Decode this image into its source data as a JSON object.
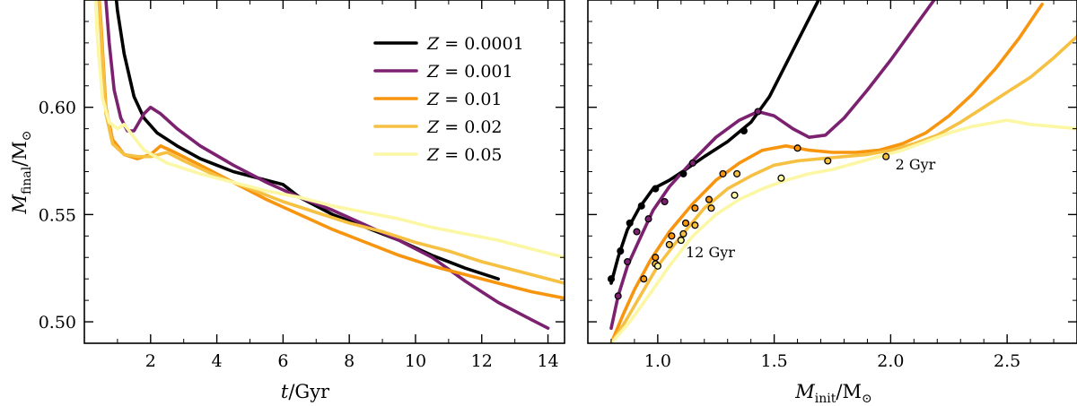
{
  "chart_data": [
    {
      "type": "line",
      "panel": "left",
      "xlabel": {
        "var": "t",
        "unit": "Gyr"
      },
      "ylabel": {
        "var": "M",
        "sub": "final",
        "unit": "M",
        "unit_sym": "⊙"
      },
      "xlim": [
        0,
        14.5
      ],
      "ylim": [
        0.49,
        0.65
      ],
      "xticks": [
        2,
        4,
        6,
        8,
        10,
        12,
        14
      ],
      "yticks": [
        0.5,
        0.55,
        0.6
      ],
      "ytick_labels": [
        "0.50",
        "0.55",
        "0.60"
      ],
      "legend": {
        "position": "top-right",
        "entries": [
          {
            "var": "Z",
            "text": " = 0.0001",
            "color": "#000000"
          },
          {
            "var": "Z",
            "text": " = 0.001",
            "color": "#7b2170"
          },
          {
            "var": "Z",
            "text": " = 0.01",
            "color": "#f8950f"
          },
          {
            "var": "Z",
            "text": " = 0.02",
            "color": "#f6c143"
          },
          {
            "var": "Z",
            "text": " = 0.05",
            "color": "#fbf7a4"
          }
        ]
      },
      "series": [
        {
          "name": "Z = 0.0001",
          "color": "#000000",
          "points": [
            [
              0.9,
              0.66
            ],
            [
              1.0,
              0.645
            ],
            [
              1.2,
              0.625
            ],
            [
              1.5,
              0.605
            ],
            [
              1.8,
              0.595
            ],
            [
              2.2,
              0.588
            ],
            [
              2.8,
              0.582
            ],
            [
              3.5,
              0.576
            ],
            [
              4.5,
              0.57
            ],
            [
              5.5,
              0.566
            ],
            [
              6.0,
              0.564
            ],
            [
              6.5,
              0.558
            ],
            [
              7.5,
              0.55
            ],
            [
              8.5,
              0.544
            ],
            [
              9.5,
              0.538
            ],
            [
              10.5,
              0.531
            ],
            [
              11.5,
              0.525
            ],
            [
              12.5,
              0.52
            ]
          ]
        },
        {
          "name": "Z = 0.001",
          "color": "#7b2170",
          "points": [
            [
              0.6,
              0.66
            ],
            [
              0.75,
              0.63
            ],
            [
              0.9,
              0.608
            ],
            [
              1.1,
              0.595
            ],
            [
              1.3,
              0.589
            ],
            [
              1.5,
              0.589
            ],
            [
              1.8,
              0.597
            ],
            [
              2.0,
              0.6
            ],
            [
              2.3,
              0.597
            ],
            [
              2.8,
              0.59
            ],
            [
              3.5,
              0.582
            ],
            [
              4.5,
              0.573
            ],
            [
              5.5,
              0.565
            ],
            [
              6.5,
              0.558
            ],
            [
              7.5,
              0.552
            ],
            [
              8.5,
              0.545
            ],
            [
              9.5,
              0.538
            ],
            [
              10.5,
              0.53
            ],
            [
              11.5,
              0.519
            ],
            [
              12.5,
              0.509
            ],
            [
              13.5,
              0.501
            ],
            [
              14.0,
              0.497
            ]
          ]
        },
        {
          "name": "Z = 0.01",
          "color": "#f8950f",
          "points": [
            [
              0.4,
              0.66
            ],
            [
              0.5,
              0.64
            ],
            [
              0.65,
              0.6
            ],
            [
              0.85,
              0.585
            ],
            [
              1.2,
              0.578
            ],
            [
              1.6,
              0.576
            ],
            [
              2.0,
              0.578
            ],
            [
              2.3,
              0.582
            ],
            [
              2.6,
              0.58
            ],
            [
              3.5,
              0.573
            ],
            [
              4.5,
              0.565
            ],
            [
              5.5,
              0.557
            ],
            [
              6.5,
              0.55
            ],
            [
              7.5,
              0.543
            ],
            [
              8.5,
              0.537
            ],
            [
              9.5,
              0.531
            ],
            [
              10.5,
              0.526
            ],
            [
              11.5,
              0.522
            ],
            [
              12.5,
              0.518
            ],
            [
              13.5,
              0.514
            ],
            [
              14.5,
              0.511
            ]
          ]
        },
        {
          "name": "Z = 0.02",
          "color": "#f6c143",
          "points": [
            [
              0.4,
              0.66
            ],
            [
              0.5,
              0.635
            ],
            [
              0.65,
              0.597
            ],
            [
              0.85,
              0.583
            ],
            [
              1.2,
              0.578
            ],
            [
              1.6,
              0.577
            ],
            [
              2.0,
              0.577
            ],
            [
              2.5,
              0.579
            ],
            [
              3.0,
              0.575
            ],
            [
              4.0,
              0.568
            ],
            [
              5.0,
              0.562
            ],
            [
              6.0,
              0.556
            ],
            [
              7.0,
              0.551
            ],
            [
              8.0,
              0.546
            ],
            [
              9.0,
              0.542
            ],
            [
              10.0,
              0.537
            ],
            [
              11.0,
              0.533
            ],
            [
              12.0,
              0.528
            ],
            [
              13.0,
              0.524
            ],
            [
              14.5,
              0.518
            ]
          ]
        },
        {
          "name": "Z = 0.05",
          "color": "#fbf7a4",
          "points": [
            [
              0.3,
              0.66
            ],
            [
              0.4,
              0.63
            ],
            [
              0.55,
              0.604
            ],
            [
              0.75,
              0.593
            ],
            [
              1.0,
              0.59
            ],
            [
              1.2,
              0.592
            ],
            [
              1.4,
              0.588
            ],
            [
              1.8,
              0.58
            ],
            [
              2.5,
              0.574
            ],
            [
              3.5,
              0.569
            ],
            [
              4.5,
              0.565
            ],
            [
              5.5,
              0.561
            ],
            [
              6.5,
              0.558
            ],
            [
              7.5,
              0.554
            ],
            [
              8.5,
              0.551
            ],
            [
              9.5,
              0.548
            ],
            [
              10.5,
              0.544
            ],
            [
              11.5,
              0.541
            ],
            [
              12.5,
              0.538
            ],
            [
              13.5,
              0.534
            ],
            [
              14.5,
              0.53
            ]
          ]
        }
      ]
    },
    {
      "type": "line",
      "panel": "right",
      "xlabel": {
        "var": "M",
        "sub": "init",
        "unit": "M",
        "unit_sym": "⊙"
      },
      "xlim": [
        0.7,
        2.8
      ],
      "ylim": [
        0.49,
        0.65
      ],
      "xticks": [
        1.0,
        1.5,
        2.0,
        2.5
      ],
      "xtick_labels": [
        "1.0",
        "1.5",
        "2.0",
        "2.5"
      ],
      "yticks": [
        0.5,
        0.55,
        0.6
      ],
      "series": [
        {
          "name": "Z = 0.0001",
          "color": "#000000",
          "points": [
            [
              0.8,
              0.518
            ],
            [
              0.83,
              0.53
            ],
            [
              0.87,
              0.543
            ],
            [
              0.92,
              0.553
            ],
            [
              0.98,
              0.562
            ],
            [
              1.05,
              0.566
            ],
            [
              1.12,
              0.571
            ],
            [
              1.2,
              0.577
            ],
            [
              1.3,
              0.584
            ],
            [
              1.4,
              0.593
            ],
            [
              1.48,
              0.605
            ],
            [
              1.55,
              0.62
            ],
            [
              1.62,
              0.635
            ],
            [
              1.7,
              0.652
            ]
          ]
        },
        {
          "name": "Z = 0.001",
          "color": "#7b2170",
          "points": [
            [
              0.8,
              0.497
            ],
            [
              0.83,
              0.512
            ],
            [
              0.87,
              0.526
            ],
            [
              0.92,
              0.538
            ],
            [
              0.98,
              0.552
            ],
            [
              1.05,
              0.563
            ],
            [
              1.15,
              0.575
            ],
            [
              1.25,
              0.586
            ],
            [
              1.35,
              0.594
            ],
            [
              1.43,
              0.598
            ],
            [
              1.5,
              0.596
            ],
            [
              1.58,
              0.59
            ],
            [
              1.65,
              0.586
            ],
            [
              1.72,
              0.587
            ],
            [
              1.8,
              0.595
            ],
            [
              1.9,
              0.608
            ],
            [
              2.0,
              0.622
            ],
            [
              2.1,
              0.637
            ],
            [
              2.2,
              0.652
            ]
          ]
        },
        {
          "name": "Z = 0.01",
          "color": "#f8950f",
          "points": [
            [
              0.8,
              0.49
            ],
            [
              0.85,
              0.503
            ],
            [
              0.9,
              0.515
            ],
            [
              0.97,
              0.529
            ],
            [
              1.05,
              0.542
            ],
            [
              1.15,
              0.555
            ],
            [
              1.25,
              0.566
            ],
            [
              1.35,
              0.574
            ],
            [
              1.45,
              0.58
            ],
            [
              1.55,
              0.582
            ],
            [
              1.65,
              0.58
            ],
            [
              1.75,
              0.579
            ],
            [
              1.85,
              0.579
            ],
            [
              1.95,
              0.58
            ],
            [
              2.05,
              0.583
            ],
            [
              2.15,
              0.588
            ],
            [
              2.25,
              0.596
            ],
            [
              2.35,
              0.606
            ],
            [
              2.45,
              0.618
            ],
            [
              2.55,
              0.632
            ],
            [
              2.65,
              0.648
            ]
          ]
        },
        {
          "name": "Z = 0.02",
          "color": "#f6c143",
          "points": [
            [
              0.8,
              0.49
            ],
            [
              0.86,
              0.5
            ],
            [
              0.93,
              0.513
            ],
            [
              1.0,
              0.526
            ],
            [
              1.1,
              0.54
            ],
            [
              1.2,
              0.553
            ],
            [
              1.3,
              0.562
            ],
            [
              1.4,
              0.568
            ],
            [
              1.5,
              0.573
            ],
            [
              1.6,
              0.575
            ],
            [
              1.7,
              0.576
            ],
            [
              1.8,
              0.577
            ],
            [
              1.9,
              0.578
            ],
            [
              2.0,
              0.58
            ],
            [
              2.1,
              0.583
            ],
            [
              2.2,
              0.587
            ],
            [
              2.3,
              0.593
            ],
            [
              2.4,
              0.6
            ],
            [
              2.5,
              0.607
            ],
            [
              2.6,
              0.614
            ],
            [
              2.7,
              0.623
            ],
            [
              2.8,
              0.633
            ]
          ]
        },
        {
          "name": "Z = 0.05",
          "color": "#fbf7a4",
          "points": [
            [
              0.8,
              0.49
            ],
            [
              0.88,
              0.5
            ],
            [
              0.96,
              0.512
            ],
            [
              1.05,
              0.526
            ],
            [
              1.15,
              0.54
            ],
            [
              1.25,
              0.55
            ],
            [
              1.35,
              0.557
            ],
            [
              1.45,
              0.562
            ],
            [
              1.55,
              0.566
            ],
            [
              1.65,
              0.569
            ],
            [
              1.75,
              0.571
            ],
            [
              1.85,
              0.574
            ],
            [
              1.95,
              0.577
            ],
            [
              2.05,
              0.58
            ],
            [
              2.15,
              0.584
            ],
            [
              2.25,
              0.588
            ],
            [
              2.35,
              0.591
            ],
            [
              2.45,
              0.593
            ],
            [
              2.5,
              0.594
            ],
            [
              2.6,
              0.592
            ],
            [
              2.7,
              0.591
            ],
            [
              2.8,
              0.59
            ]
          ]
        }
      ],
      "markers": [
        {
          "series": "Z = 0.0001",
          "style": "filled",
          "points": [
            [
              0.8,
              0.52
            ],
            [
              0.84,
              0.533
            ],
            [
              0.88,
              0.546
            ],
            [
              0.93,
              0.554
            ],
            [
              0.99,
              0.562
            ],
            [
              1.11,
              0.569
            ],
            [
              1.37,
              0.589
            ]
          ]
        },
        {
          "series": "Z = 0.001",
          "style": "filled",
          "points": [
            [
              0.83,
              0.512
            ],
            [
              0.87,
              0.528
            ],
            [
              0.91,
              0.542
            ],
            [
              0.96,
              0.548
            ],
            [
              1.03,
              0.556
            ],
            [
              1.15,
              0.574
            ],
            [
              1.43,
              0.598
            ]
          ]
        },
        {
          "series": "Z = 0.01",
          "style": "open",
          "points": [
            [
              0.94,
              0.52
            ],
            [
              0.99,
              0.53
            ],
            [
              1.06,
              0.54
            ],
            [
              1.12,
              0.546
            ],
            [
              1.16,
              0.553
            ],
            [
              1.22,
              0.557
            ],
            [
              1.28,
              0.569
            ],
            [
              1.6,
              0.581
            ]
          ]
        },
        {
          "series": "Z = 0.02",
          "style": "open",
          "points": [
            [
              0.99,
              0.527
            ],
            [
              1.05,
              0.536
            ],
            [
              1.11,
              0.541
            ],
            [
              1.16,
              0.545
            ],
            [
              1.23,
              0.553
            ],
            [
              1.34,
              0.569
            ],
            [
              1.73,
              0.575
            ],
            [
              1.98,
              0.577
            ]
          ]
        },
        {
          "series": "Z = 0.05",
          "style": "open",
          "points": [
            [
              1.0,
              0.526
            ],
            [
              1.1,
              0.538
            ],
            [
              1.33,
              0.559
            ],
            [
              1.53,
              0.567
            ]
          ]
        }
      ],
      "annotations": [
        {
          "text": "2 Gyr",
          "x": 2.02,
          "y": 0.571
        },
        {
          "text": "12 Gyr",
          "x": 1.12,
          "y": 0.53
        }
      ]
    }
  ]
}
